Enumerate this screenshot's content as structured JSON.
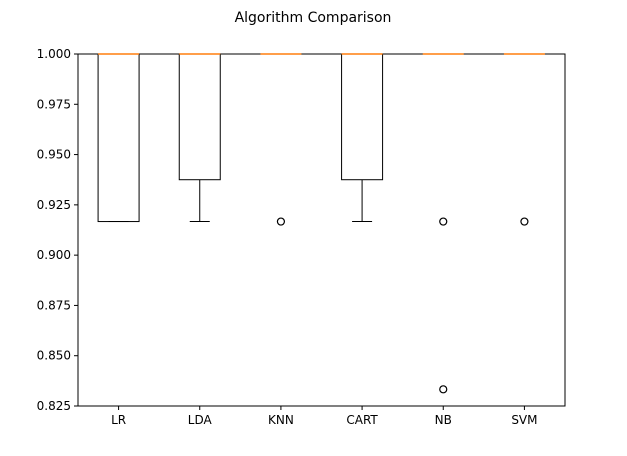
{
  "chart_data": {
    "type": "box",
    "title": "Algorithm Comparison",
    "xlabel": "",
    "ylabel": "",
    "ylim": [
      0.825,
      1.0
    ],
    "yticks": [
      "0.825",
      "0.850",
      "0.875",
      "0.900",
      "0.925",
      "0.950",
      "0.975",
      "1.000"
    ],
    "categories": [
      "LR",
      "LDA",
      "KNN",
      "CART",
      "NB",
      "SVM"
    ],
    "series": [
      {
        "label": "LR",
        "whisker_low": 0.9167,
        "q1": 0.9167,
        "median": 1.0,
        "q3": 1.0,
        "whisker_high": 1.0,
        "outliers": []
      },
      {
        "label": "LDA",
        "whisker_low": 0.9167,
        "q1": 0.9375,
        "median": 1.0,
        "q3": 1.0,
        "whisker_high": 1.0,
        "outliers": []
      },
      {
        "label": "KNN",
        "whisker_low": 1.0,
        "q1": 1.0,
        "median": 1.0,
        "q3": 1.0,
        "whisker_high": 1.0,
        "outliers": [
          0.9167
        ]
      },
      {
        "label": "CART",
        "whisker_low": 0.9167,
        "q1": 0.9375,
        "median": 1.0,
        "q3": 1.0,
        "whisker_high": 1.0,
        "outliers": []
      },
      {
        "label": "NB",
        "whisker_low": 1.0,
        "q1": 1.0,
        "median": 1.0,
        "q3": 1.0,
        "whisker_high": 1.0,
        "outliers": [
          0.9167,
          0.8333
        ]
      },
      {
        "label": "SVM",
        "whisker_low": 1.0,
        "q1": 1.0,
        "median": 1.0,
        "q3": 1.0,
        "whisker_high": 1.0,
        "outliers": [
          0.9167
        ]
      }
    ],
    "colors": {
      "box": "#000000",
      "median": "#ff7f0e",
      "outlier": "#000000"
    },
    "grid": false,
    "legend": "none"
  }
}
